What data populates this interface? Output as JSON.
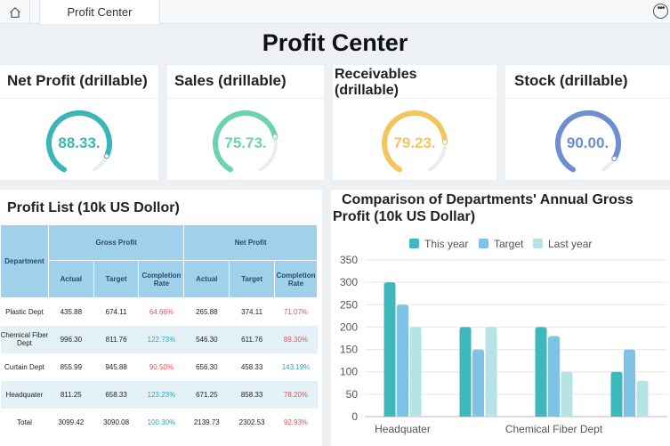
{
  "tab": {
    "label": "Profit Center"
  },
  "page_title": "Profit Center",
  "kpis": [
    {
      "title": "Net Profit (drillable)",
      "value": "88.33.",
      "percent": 88.33,
      "color": "#3ab5b9"
    },
    {
      "title": "Sales (drillable)",
      "value": "75.73.",
      "percent": 75.73,
      "color": "#6cd3b2"
    },
    {
      "title": "Receivables (drillable)",
      "value": "79.23.",
      "percent": 79.23,
      "color": "#f4c55c"
    },
    {
      "title": "Stock (drillable)",
      "value": "90.00.",
      "percent": 90.0,
      "color": "#6d8ecf"
    }
  ],
  "profit_list": {
    "title": "Profit List (10k US Dollor)",
    "group_headers": [
      "Gross Profit",
      "Net Profit"
    ],
    "dept_header": "Department",
    "sub_headers": [
      "Actual",
      "Target",
      "Completion Rate",
      "Actual",
      "Target",
      "Completion Rate"
    ],
    "rows": [
      {
        "dept": "Plastic Dept",
        "gp_actual": "435.88",
        "gp_target": "674.11",
        "gp_rate": "64.66%",
        "np_actual": "265.88",
        "np_target": "374.11",
        "np_rate": "71.07%"
      },
      {
        "dept": "Chemical Fiber Dept",
        "gp_actual": "996.30",
        "gp_target": "811.76",
        "gp_rate": "122.73%",
        "np_actual": "546.30",
        "np_target": "611.76",
        "np_rate": "89.30%"
      },
      {
        "dept": "Curtain Dept",
        "gp_actual": "855.99",
        "gp_target": "945.88",
        "gp_rate": "90.50%",
        "np_actual": "656.30",
        "np_target": "458.33",
        "np_rate": "143.19%"
      },
      {
        "dept": "Headquater",
        "gp_actual": "811.25",
        "gp_target": "658.33",
        "gp_rate": "123.23%",
        "np_actual": "671.25",
        "np_target": "858.33",
        "np_rate": "78.20%"
      },
      {
        "dept": "Total",
        "gp_actual": "3099.42",
        "gp_target": "3090.08",
        "gp_rate": "100.30%",
        "np_actual": "2139.73",
        "np_target": "2302.53",
        "np_rate": "92.93%"
      }
    ]
  },
  "chart_data": {
    "type": "bar",
    "title": "Comparison of Departments' Annual Gross Profit (10k US Dollar)",
    "categories": [
      "Headquater",
      "",
      "Chemical Fiber Dept",
      ""
    ],
    "series": [
      {
        "name": "This year",
        "color": "#3fb8bd",
        "values": [
          300,
          200,
          200,
          100
        ]
      },
      {
        "name": "Target",
        "color": "#7ec3e6",
        "values": [
          250,
          150,
          180,
          150
        ]
      },
      {
        "name": "Last year",
        "color": "#b4e4e4",
        "values": [
          200,
          200,
          100,
          80
        ]
      }
    ],
    "ylim": [
      0,
      350
    ],
    "yticks": [
      "0",
      "50",
      "100",
      "150",
      "200",
      "250",
      "300",
      "350"
    ],
    "grid": true,
    "legend": "top"
  },
  "icons": {
    "home": "home-icon",
    "more": "more-options-icon"
  }
}
